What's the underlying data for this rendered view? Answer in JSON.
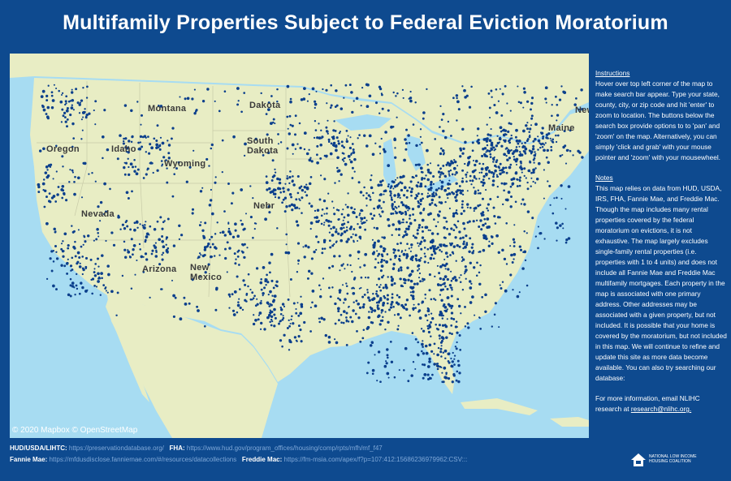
{
  "title": "Multifamily Properties Subject to Federal Eviction Moratorium",
  "map": {
    "attribution": "© 2020 Mapbox © OpenStreetMap",
    "labels": [
      {
        "name": "Montana"
      },
      {
        "name": "Dakota"
      },
      {
        "name": "South Dakota"
      },
      {
        "name": "Oregon"
      },
      {
        "name": "Idaho"
      },
      {
        "name": "Wyoming"
      },
      {
        "name": "Nebr"
      },
      {
        "name": "Nevada"
      },
      {
        "name": "Arizona"
      },
      {
        "name": "New Mexico"
      },
      {
        "name": "Maine"
      },
      {
        "name": "New"
      }
    ],
    "colors": {
      "water": "#a7dcf2",
      "land": "#e8edc4",
      "dots": "#0b3f8c"
    }
  },
  "sidebar": {
    "instructions_header": "Instructions",
    "instructions_text": "Hover over top left corner of the map to make search bar appear. Type your state, county, city, or zip code and hit 'enter' to zoom to location. The buttons below the search box provide options to to 'pan' and 'zoom' on the map. Alternatively, you can simply 'click and grab' with your mouse pointer and 'zoom' with your mousewheel.",
    "notes_header": "Notes",
    "notes_text": "This map relies on data from HUD, USDA, IRS, FHA, Fannie Mae, and Freddie Mac. Though the map includes many rental properties covered by the federal moratorium on evictions, it is not exhaustive. The map largely excludes single-family rental properties (i.e. properties with 1 to 4 units) and does not include all Fannie Mae and Freddie Mac multifamily mortgages. Each property in the map is associated with one primary address. Other addresses may be associated with a given property, but not included. It is possible that your home is covered by the moratorium, but not included in this map. We will continue to refine and update this site as more data become available. You can also try searching our database:",
    "contact_text": "For more information, email NLIHC research at ",
    "contact_email": "research@nlihc.org."
  },
  "footer": {
    "row1_label1": "HUD/USDA/LIHTC:",
    "row1_link1": "https://preservationdatabase.org/",
    "row1_label2": "FHA:",
    "row1_link2": "https://www.hud.gov/program_offices/housing/comp/rpts/mfh/mf_f47",
    "row2_label1": "Fannie Mae:",
    "row2_link1": "https://mfdusdisclose.fanniemae.com/#/resources/datacollections",
    "row2_label2": "Freddie Mac:",
    "row2_link2": "https://fm-msia.com/apex/f?p=107:412:15686236979962:CSV:::"
  },
  "logo": {
    "text": "NATIONAL LOW INCOME HOUSING COALITION"
  }
}
